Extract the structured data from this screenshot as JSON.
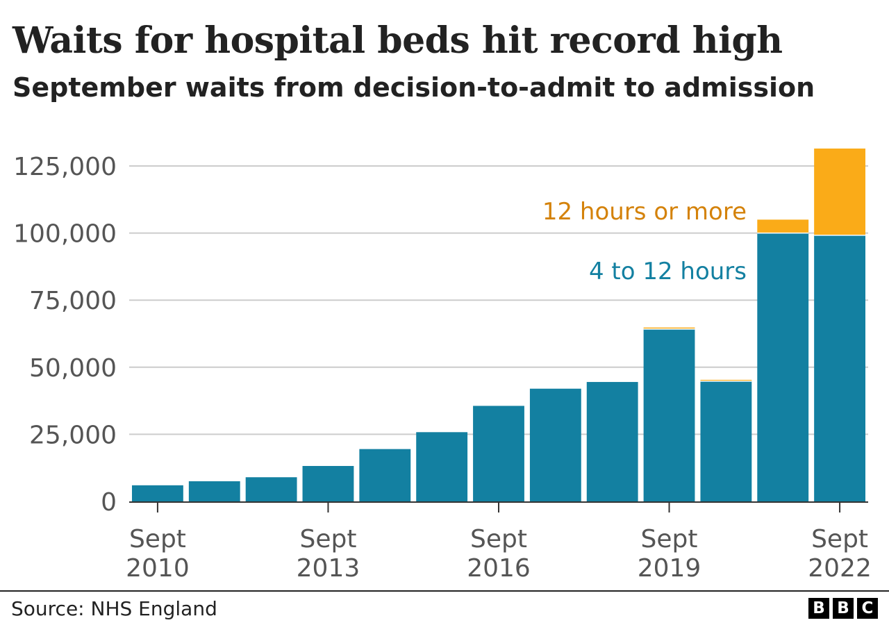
{
  "title": "Waits for hospital beds hit record high",
  "subtitle": "September waits from decision-to-admit to admission",
  "source": "Source: NHS England",
  "logo": [
    "B",
    "B",
    "C"
  ],
  "colors": {
    "series_4_to_12": "#1380A1",
    "series_12_plus": "#FAAB18",
    "label_12_plus": "#D4820A",
    "grid": "#CCCCCC",
    "axis_text": "#555555"
  },
  "chart_data": {
    "type": "bar",
    "stacked": true,
    "categories": [
      "Sept 2010",
      "Sept 2011",
      "Sept 2012",
      "Sept 2013",
      "Sept 2014",
      "Sept 2015",
      "Sept 2016",
      "Sept 2017",
      "Sept 2018",
      "Sept 2019",
      "Sept 2020",
      "Sept 2021",
      "Sept 2022"
    ],
    "x_tick_labels": [
      {
        "index": 0,
        "line1": "Sept",
        "line2": "2010"
      },
      {
        "index": 3,
        "line1": "Sept",
        "line2": "2013"
      },
      {
        "index": 6,
        "line1": "Sept",
        "line2": "2016"
      },
      {
        "index": 9,
        "line1": "Sept",
        "line2": "2019"
      },
      {
        "index": 12,
        "line1": "Sept",
        "line2": "2022"
      }
    ],
    "series": [
      {
        "name": "4 to 12 hours",
        "values": [
          6000,
          7500,
          9000,
          13200,
          19500,
          25800,
          35600,
          42000,
          44500,
          64200,
          44800,
          100000,
          99200
        ]
      },
      {
        "name": "12 hours or more",
        "values": [
          0,
          0,
          0,
          0,
          0,
          0,
          0,
          0,
          0,
          600,
          500,
          5000,
          32300
        ]
      }
    ],
    "yticks": [
      0,
      25000,
      50000,
      75000,
      100000,
      125000
    ],
    "ytick_labels": [
      "0",
      "25,000",
      "50,000",
      "75,000",
      "100,000",
      "125,000"
    ],
    "ylim": [
      0,
      132000
    ],
    "grid": true,
    "legend": "inline"
  }
}
